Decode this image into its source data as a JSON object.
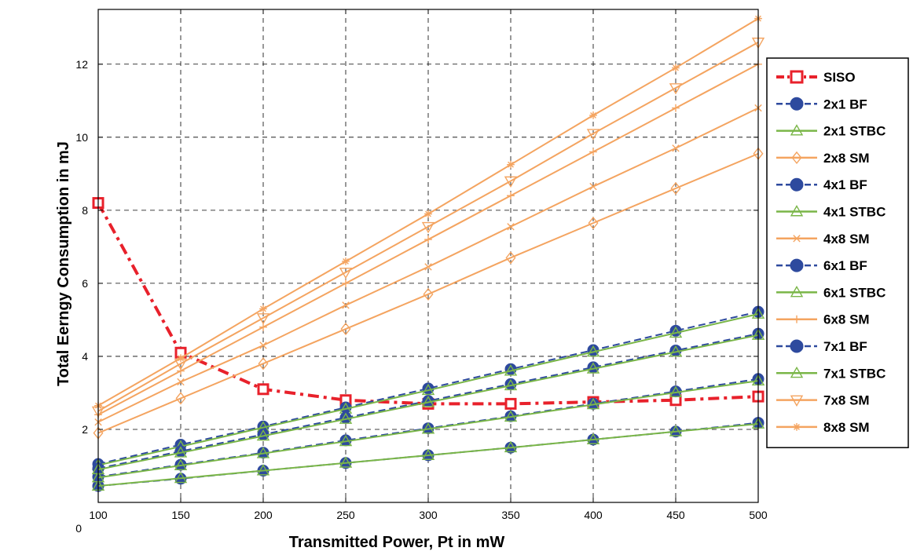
{
  "chart_data": {
    "type": "line",
    "title": "",
    "xlabel": "Transmitted Power, Pt in mW",
    "ylabel": "Total Eerngy Consumption in mJ",
    "x": [
      100,
      150,
      200,
      250,
      300,
      350,
      400,
      450,
      500
    ],
    "xlim": [
      100,
      500
    ],
    "ylim": [
      0,
      13.5
    ],
    "xticks": [
      100,
      150,
      200,
      250,
      300,
      350,
      400,
      450,
      500
    ],
    "yticks": [
      0,
      2,
      4,
      6,
      8,
      10,
      12
    ],
    "grid": true,
    "legend_position": "right",
    "series": [
      {
        "name": "SISO",
        "color": "#e8212b",
        "line": "dashdot",
        "marker": "square",
        "values": [
          8.2,
          4.1,
          3.1,
          2.8,
          2.7,
          2.7,
          2.75,
          2.8,
          2.9
        ]
      },
      {
        "name": "2x1 BF",
        "color": "#2e4a9e",
        "line": "dashed",
        "marker": "circle",
        "values": [
          0.45,
          0.65,
          0.87,
          1.08,
          1.29,
          1.5,
          1.72,
          1.94,
          2.18
        ]
      },
      {
        "name": "2x1 STBC",
        "color": "#7ab648",
        "line": "solid",
        "marker": "triangle",
        "values": [
          0.45,
          0.66,
          0.87,
          1.08,
          1.29,
          1.5,
          1.72,
          1.94,
          2.15
        ]
      },
      {
        "name": "2x8 SM",
        "color": "#f4a460",
        "line": "solid",
        "marker": "diamond",
        "values": [
          1.9,
          2.85,
          3.8,
          4.75,
          5.7,
          6.7,
          7.65,
          8.6,
          9.55
        ]
      },
      {
        "name": "4x1 BF",
        "color": "#2e4a9e",
        "line": "dashed",
        "marker": "circle",
        "values": [
          0.7,
          1.03,
          1.36,
          1.7,
          2.03,
          2.36,
          2.7,
          3.04,
          3.38
        ]
      },
      {
        "name": "4x1 STBC",
        "color": "#7ab648",
        "line": "solid",
        "marker": "triangle",
        "values": [
          0.68,
          1.01,
          1.34,
          1.67,
          2.01,
          2.34,
          2.68,
          3.01,
          3.33
        ]
      },
      {
        "name": "4x8 SM",
        "color": "#f4a460",
        "line": "solid",
        "marker": "x",
        "values": [
          2.2,
          3.3,
          4.3,
          5.4,
          6.45,
          7.55,
          8.65,
          9.7,
          10.8
        ]
      },
      {
        "name": "6x1 BF",
        "color": "#2e4a9e",
        "line": "dashed",
        "marker": "circle",
        "values": [
          1.05,
          1.58,
          2.08,
          2.6,
          3.12,
          3.65,
          4.17,
          4.7,
          5.22
        ]
      },
      {
        "name": "6x1 STBC",
        "color": "#7ab648",
        "line": "solid",
        "marker": "triangle",
        "values": [
          1.02,
          1.53,
          2.05,
          2.56,
          3.07,
          3.6,
          4.12,
          4.64,
          5.16
        ]
      },
      {
        "name": "6x8 SM",
        "color": "#f4a460",
        "line": "solid",
        "marker": "plus",
        "values": [
          2.4,
          3.6,
          4.8,
          6.0,
          7.2,
          8.4,
          9.6,
          10.8,
          12.0
        ]
      },
      {
        "name": "7x1 BF",
        "color": "#2e4a9e",
        "line": "dashed",
        "marker": "circle",
        "values": [
          0.93,
          1.4,
          1.86,
          2.32,
          2.78,
          3.24,
          3.7,
          4.16,
          4.62
        ]
      },
      {
        "name": "7x1 STBC",
        "color": "#7ab648",
        "line": "solid",
        "marker": "triangle",
        "values": [
          0.9,
          1.36,
          1.82,
          2.28,
          2.74,
          3.2,
          3.66,
          4.12,
          4.58
        ]
      },
      {
        "name": "7x8 SM",
        "color": "#f4a460",
        "line": "solid",
        "marker": "triangle-down",
        "values": [
          2.5,
          3.8,
          5.05,
          6.3,
          7.55,
          8.8,
          10.1,
          11.35,
          12.6
        ]
      },
      {
        "name": "8x8 SM",
        "color": "#f4a460",
        "line": "solid",
        "marker": "star",
        "values": [
          2.65,
          3.95,
          5.3,
          6.6,
          7.9,
          9.25,
          10.6,
          11.9,
          13.25
        ]
      }
    ]
  }
}
